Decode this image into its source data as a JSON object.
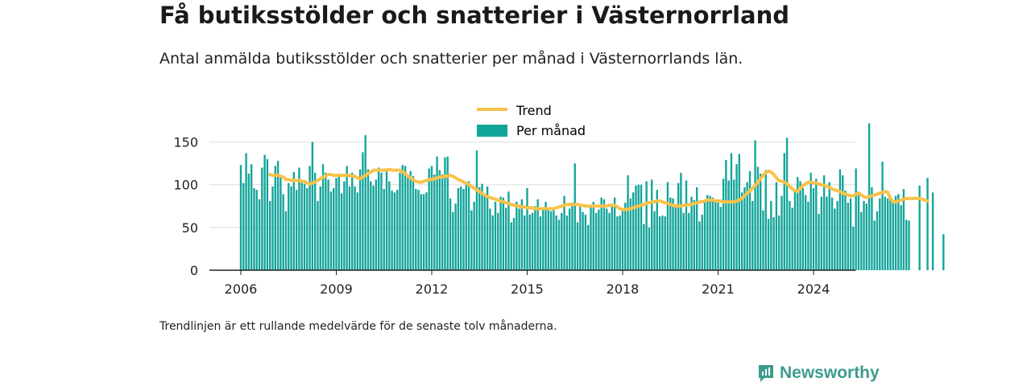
{
  "title": "Få butiksstölder och snatterier i Västernorrland",
  "subtitle": "Antal anmälda butiksstölder och snatterier per månad i Västernorrlands län.",
  "footnote": "Trendlinjen är ett rullande medelvärde för de senaste tolv månaderna.",
  "brand": "Newsworthy",
  "colors": {
    "bar": "#13a49a",
    "trend": "#f9c24a",
    "grid": "#dddddd",
    "axis": "#222222",
    "brand": "#3c9c8c"
  },
  "chart_data": {
    "type": "bar",
    "legend": {
      "position": "top-center",
      "entries": [
        "Trend",
        "Per månad"
      ]
    },
    "grid": true,
    "ylim": [
      0,
      175
    ],
    "yticks": [
      0,
      50,
      100,
      150
    ],
    "xticks": [
      "2006",
      "2009",
      "2012",
      "2015",
      "2018",
      "2021",
      "2024"
    ],
    "x_start": "2006-01",
    "series": [
      {
        "name": "Per månad",
        "type": "bar",
        "values": [
          123,
          102,
          137,
          113,
          124,
          96,
          94,
          83,
          120,
          135,
          130,
          81,
          98,
          122,
          128,
          110,
          89,
          69,
          102,
          98,
          115,
          94,
          120,
          103,
          101,
          96,
          122,
          150,
          114,
          81,
          98,
          124,
          114,
          106,
          92,
          96,
          108,
          112,
          90,
          104,
          122,
          98,
          114,
          98,
          91,
          118,
          138,
          158,
          118,
          104,
          99,
          106,
          120,
          114,
          95,
          118,
          104,
          93,
          91,
          94,
          114,
          123,
          122,
          109,
          116,
          110,
          95,
          94,
          89,
          89,
          91,
          119,
          122,
          112,
          133,
          117,
          112,
          132,
          133,
          84,
          68,
          78,
          96,
          98,
          95,
          102,
          104,
          70,
          80,
          140,
          97,
          101,
          87,
          98,
          72,
          64,
          80,
          67,
          86,
          85,
          73,
          92,
          56,
          61,
          80,
          72,
          83,
          64,
          96,
          65,
          67,
          75,
          83,
          63,
          71,
          80,
          70,
          69,
          72,
          64,
          59,
          67,
          87,
          64,
          72,
          79,
          125,
          56,
          76,
          68,
          65,
          53,
          76,
          80,
          67,
          71,
          85,
          83,
          72,
          67,
          77,
          85,
          63,
          64,
          73,
          79,
          111,
          84,
          91,
          99,
          100,
          100,
          54,
          104,
          50,
          106,
          69,
          94,
          63,
          64,
          63,
          103,
          85,
          84,
          77,
          102,
          114,
          67,
          105,
          67,
          86,
          82,
          97,
          57,
          65,
          82,
          88,
          87,
          85,
          80,
          79,
          74,
          107,
          129,
          105,
          137,
          106,
          124,
          136,
          91,
          97,
          103,
          116,
          81,
          152,
          121,
          113,
          70,
          117,
          60,
          81,
          62,
          103,
          64,
          87,
          137,
          155,
          81,
          73,
          95,
          109,
          104,
          96,
          88,
          80,
          114,
          96,
          107,
          66,
          86,
          111,
          86,
          103,
          85,
          72,
          81,
          118,
          111,
          93,
          79,
          84,
          51,
          119,
          92,
          68,
          81,
          78,
          172,
          97,
          58,
          69,
          84,
          127,
          86,
          84,
          86,
          81,
          87,
          89,
          76,
          95,
          59,
          58,
          0,
          0,
          0,
          99,
          0,
          0,
          108,
          0,
          91,
          0,
          0,
          0,
          42
        ]
      },
      {
        "name": "Trend",
        "type": "line",
        "values": [
          null,
          null,
          null,
          null,
          null,
          null,
          null,
          null,
          null,
          null,
          null,
          112,
          111,
          111,
          111,
          110,
          109,
          106,
          106,
          105,
          105,
          105,
          105,
          104,
          104,
          102,
          101,
          102,
          103,
          105,
          107,
          109,
          110,
          112,
          112,
          111,
          111,
          111,
          111,
          111,
          111,
          111,
          110,
          110,
          108,
          107,
          109,
          111,
          113,
          115,
          117,
          117,
          117,
          117,
          117,
          117,
          118,
          117,
          117,
          117,
          117,
          115,
          113,
          110,
          108,
          106,
          104,
          103,
          103,
          104,
          105,
          106,
          106,
          107,
          108,
          109,
          109,
          110,
          110,
          111,
          110,
          108,
          106,
          105,
          103,
          102,
          100,
          98,
          96,
          94,
          92,
          90,
          88,
          86,
          85,
          84,
          83,
          82,
          81,
          80,
          79,
          78,
          77,
          76,
          75,
          75,
          74,
          74,
          73,
          73,
          73,
          72,
          72,
          72,
          72,
          72,
          72,
          72,
          72,
          73,
          74,
          75,
          76,
          77,
          77,
          77,
          77,
          77,
          76,
          76,
          75,
          75,
          75,
          75,
          75,
          75,
          75,
          75,
          75,
          76,
          76,
          76,
          74,
          72,
          71,
          71,
          71,
          72,
          73,
          74,
          75,
          76,
          77,
          78,
          79,
          80,
          80,
          81,
          81,
          80,
          79,
          78,
          77,
          76,
          75,
          75,
          75,
          76,
          76,
          77,
          77,
          78,
          79,
          80,
          80,
          81,
          82,
          82,
          82,
          81,
          81,
          81,
          80,
          80,
          80,
          80,
          80,
          81,
          82,
          84,
          87,
          90,
          93,
          96,
          99,
          103,
          107,
          111,
          114,
          116,
          115,
          112,
          108,
          105,
          104,
          103,
          101,
          98,
          95,
          93,
          92,
          96,
          99,
          101,
          103,
          103,
          102,
          102,
          101,
          100,
          99,
          98,
          97,
          95,
          94,
          93,
          92,
          90,
          89,
          88,
          87,
          87,
          89,
          90,
          88,
          86,
          85,
          86,
          87,
          88,
          89,
          90,
          91,
          92,
          91,
          84,
          80,
          80,
          81,
          82,
          83,
          84,
          84,
          84,
          84,
          84,
          84,
          83,
          82,
          81
        ]
      }
    ]
  }
}
